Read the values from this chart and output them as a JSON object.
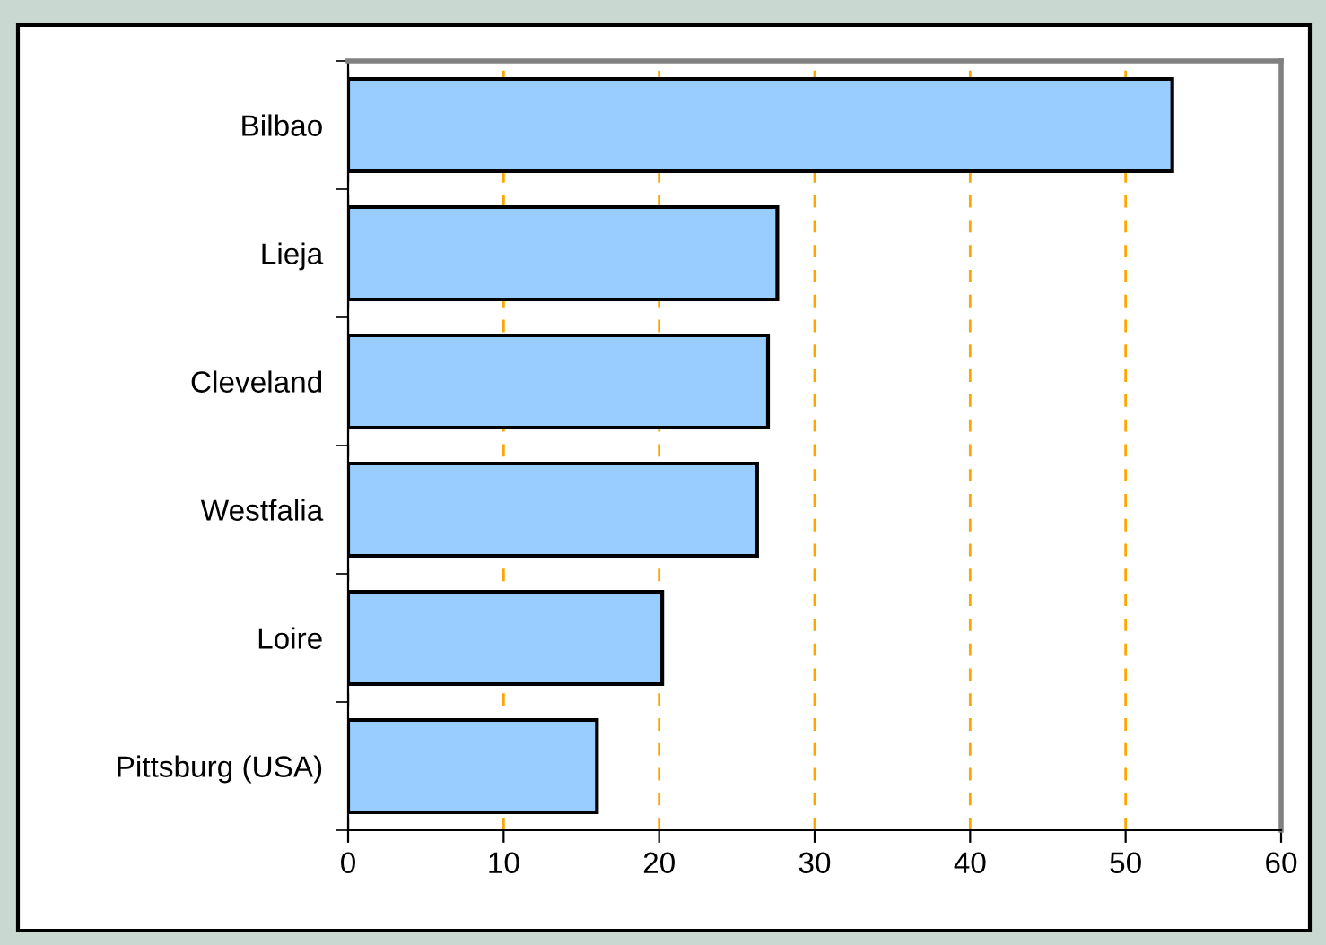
{
  "chart_data": {
    "type": "bar",
    "orientation": "horizontal",
    "categories": [
      "Bilbao",
      "Lieja",
      "Cleveland",
      "Westfalia",
      "Loire",
      "Pittsburg (USA)"
    ],
    "values": [
      53.0,
      27.6,
      27.0,
      26.3,
      20.2,
      16.0
    ],
    "color": "#99ccff",
    "xlim": [
      0,
      60
    ],
    "xticks": [
      0,
      10,
      20,
      30,
      40,
      50,
      60
    ],
    "grid": "x"
  }
}
